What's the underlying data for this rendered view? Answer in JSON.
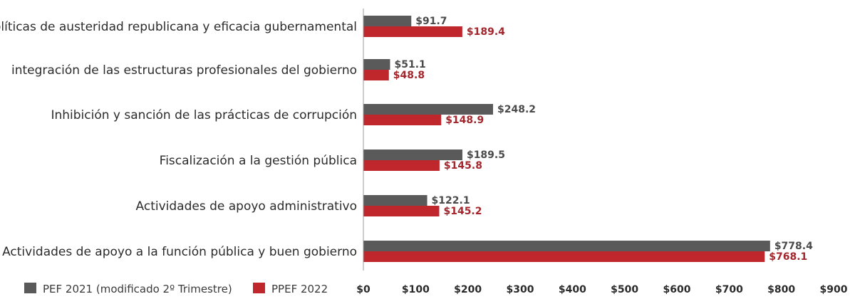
{
  "chart_data": {
    "type": "bar",
    "orientation": "horizontal",
    "title": "",
    "xlabel": "",
    "ylabel": "",
    "xlim": [
      0,
      900
    ],
    "x_ticks": [
      0,
      100,
      200,
      300,
      400,
      500,
      600,
      700,
      800,
      900
    ],
    "tick_labels": [
      "$0",
      "$100",
      "$200",
      "$300",
      "$400",
      "$500",
      "$600",
      "$700",
      "$800",
      "$900"
    ],
    "categories": [
      "Políticas de austeridad republicana y eficacia gubernamental",
      "integración de las estructuras profesionales del gobierno",
      "Inhibición y sanción de las prácticas de corrupción",
      "Fiscalización a la gestión pública",
      "Actividades de apoyo administrativo",
      "Actividades de apoyo a la función pública y buen gobierno"
    ],
    "series": [
      {
        "name": "PEF 2021 (modificado 2º Trimestre)",
        "color": "#5a5a5a",
        "values": [
          91.7,
          51.1,
          248.2,
          189.5,
          122.1,
          778.4
        ],
        "labels": [
          "$91.7",
          "$51.1",
          "$248.2",
          "$189.5",
          "$122.1",
          "$778.4"
        ]
      },
      {
        "name": "PPEF 2022",
        "color": "#c0272d",
        "values": [
          189.4,
          48.8,
          148.9,
          145.8,
          145.2,
          768.1
        ],
        "labels": [
          "$189.4",
          "$48.8",
          "$148.9",
          "$145.8",
          "$145.2",
          "$768.1"
        ]
      }
    ],
    "grid": false,
    "legend_position": "bottom-left"
  }
}
